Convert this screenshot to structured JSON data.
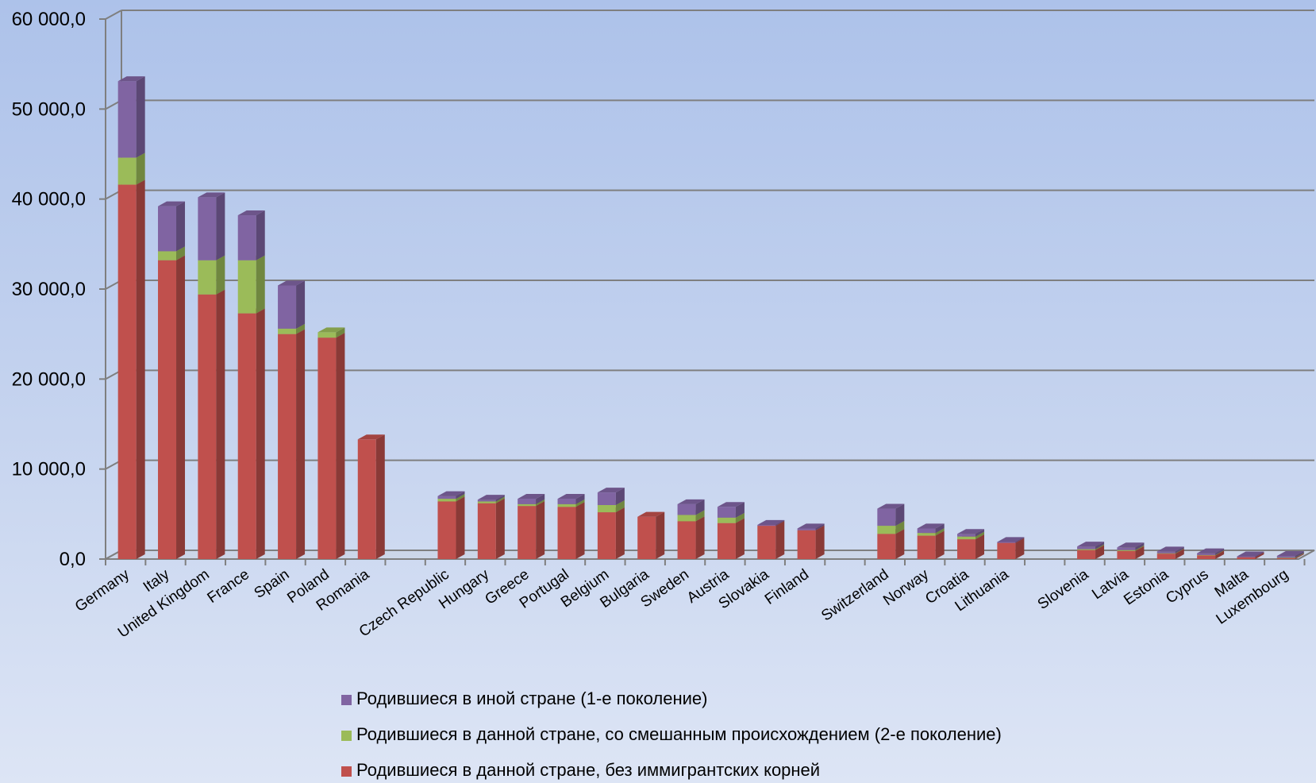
{
  "chart_data": {
    "type": "bar",
    "stacked": true,
    "three_d": true,
    "title": "",
    "xlabel": "",
    "ylabel": "",
    "ylim": [
      0,
      60000
    ],
    "yticks": [
      0,
      10000,
      20000,
      30000,
      40000,
      50000,
      60000
    ],
    "ytick_labels": [
      "0,0",
      "10 000,0",
      "20 000,0",
      "30 000,0",
      "40 000,0",
      "50 000,0",
      "60 000,0"
    ],
    "grid": true,
    "legend_position": "bottom",
    "categories": [
      "Germany",
      "Italy",
      "United Kingdom",
      "France",
      "Spain",
      "Poland",
      "Romania",
      "",
      "Czech Republic",
      "Hungary",
      "Greece",
      "Portugal",
      "Belgium",
      "Bulgaria",
      "Sweden",
      "Austria",
      "Slovakia",
      "Finland",
      "",
      "Switzerland",
      "Norway",
      "Croatia",
      "Lithuania",
      "",
      "Slovenia",
      "Latvia",
      "Estonia",
      "Cyprus",
      "Malta",
      "Luxembourg"
    ],
    "series": [
      {
        "name": "Родившиеся в данной стране, без иммигрантских корней",
        "color": "#c0504d",
        "values": [
          41600,
          33200,
          29400,
          27300,
          25000,
          24600,
          13300,
          0,
          6400,
          6200,
          5900,
          5800,
          5200,
          4700,
          4200,
          4000,
          3700,
          3200,
          0,
          2800,
          2600,
          2200,
          1800,
          0,
          1000,
          900,
          600,
          400,
          200,
          100
        ]
      },
      {
        "name": "Родившиеся в данной стране, со смешанным происхождением (2-е поколение)",
        "color": "#9bbb59",
        "values": [
          3000,
          1000,
          3800,
          5900,
          600,
          600,
          0,
          0,
          300,
          200,
          200,
          300,
          800,
          0,
          700,
          600,
          0,
          0,
          0,
          900,
          300,
          300,
          0,
          0,
          100,
          100,
          50,
          50,
          0,
          50
        ]
      },
      {
        "name": "Родившиеся в иной стране (1-е поколение)",
        "color": "#8064a2",
        "values": [
          8500,
          5000,
          7000,
          5000,
          4800,
          0,
          0,
          0,
          300,
          200,
          600,
          600,
          1400,
          0,
          1200,
          1200,
          100,
          200,
          0,
          1900,
          500,
          300,
          100,
          0,
          300,
          300,
          200,
          200,
          100,
          200
        ]
      }
    ]
  }
}
